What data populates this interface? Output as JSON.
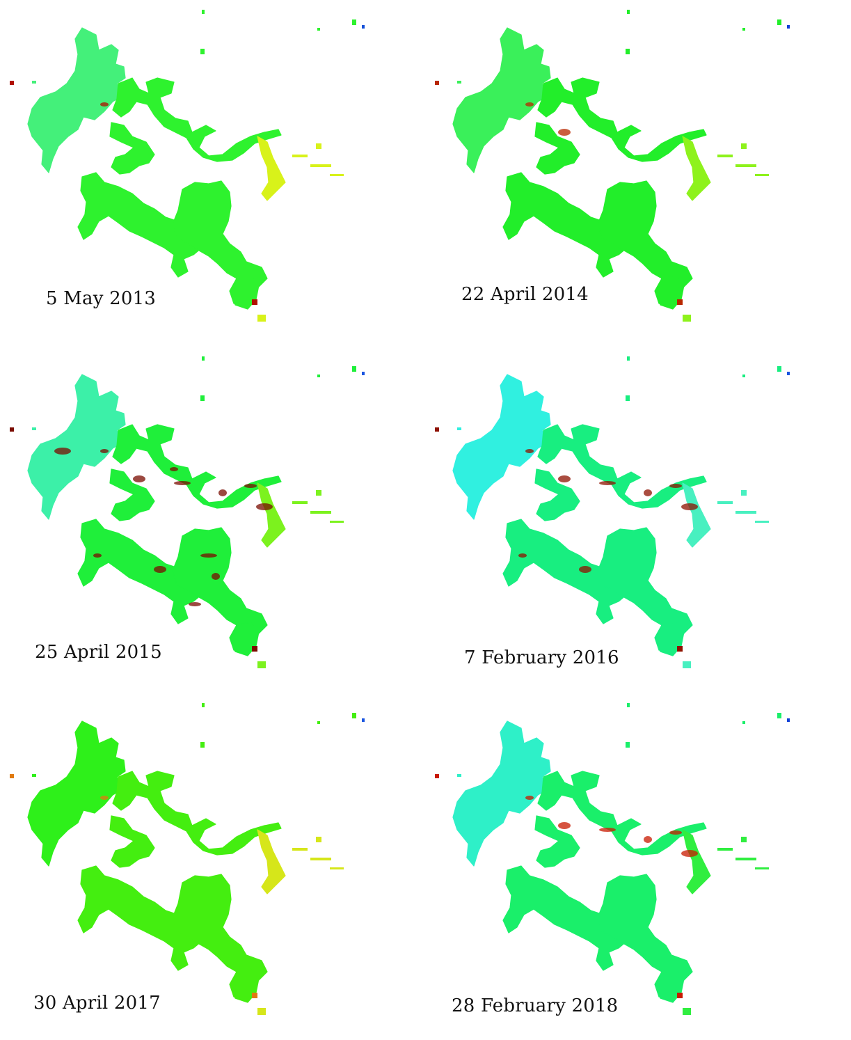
{
  "panels": [
    {
      "date": "5 May 2013",
      "palette": {
        "main": "#2ef22e",
        "west": "#44f07a",
        "east": "#d8f21a",
        "hot": "#b01000",
        "cold": "#1450d8"
      },
      "hot_level": 0.1
    },
    {
      "date": "22 April 2014",
      "palette": {
        "main": "#22ee2a",
        "west": "#3af05a",
        "east": "#8ef21c",
        "hot": "#b82800",
        "cold": "#1040d8"
      },
      "hot_level": 0.15
    },
    {
      "date": "25 April 2015",
      "palette": {
        "main": "#1fef3a",
        "west": "#3cf0a8",
        "east": "#7cf21e",
        "hot": "#7a0c00",
        "cold": "#1a55e0"
      },
      "hot_level": 0.9
    },
    {
      "date": "7 February 2016",
      "palette": {
        "main": "#18ee80",
        "west": "#30f0e0",
        "east": "#48f0c0",
        "hot": "#8e1200",
        "cold": "#1a55e0"
      },
      "hot_level": 0.55
    },
    {
      "date": "30 April 2017",
      "palette": {
        "main": "#44ee10",
        "west": "#2ef01a",
        "east": "#d6e61a",
        "hot": "#e07a10",
        "cold": "#1a55e0"
      },
      "hot_level": 0.05
    },
    {
      "date": "28 February 2018",
      "palette": {
        "main": "#1aef6a",
        "west": "#2ef0c8",
        "east": "#30ee40",
        "hot": "#c81a00",
        "cold": "#1040d8"
      },
      "hot_level": 0.45
    }
  ]
}
